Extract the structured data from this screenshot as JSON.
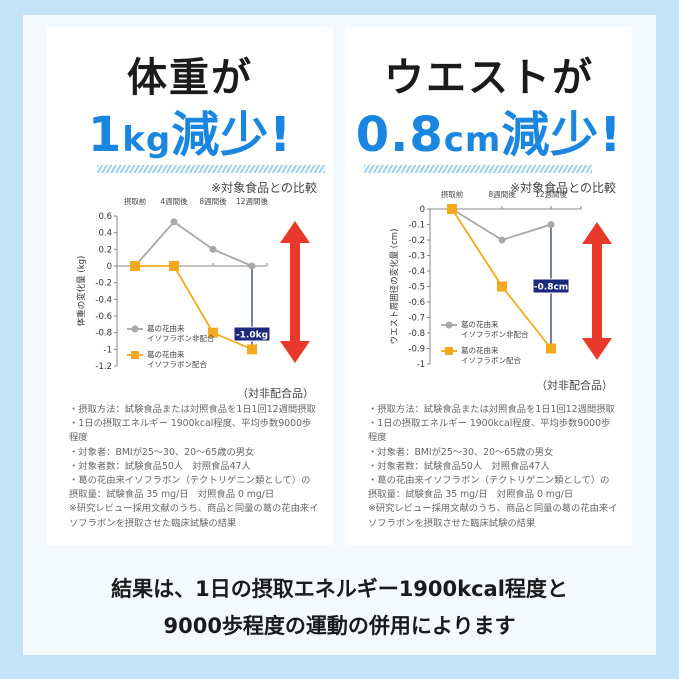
{
  "left_panel": {
    "title_line1": "体重が",
    "title_num": "1",
    "title_unit": "kg",
    "title_rest": "減少!",
    "comparison_note": "※対象食品との比較",
    "vs_label": "（対非配合品）",
    "description": "・摂取方法：試験食品または対照食品を1日1回12週間摂取\n・1日の摂取エネルギー 1900kcal程度、平均歩数9000歩程度\n・対象者：BMIが25～30、20～65歳の男女\n・対象者数：試験食品50人　対照食品47人\n・葛の花由来イソフラボン（テクトリゲニン類として）の摂取量：試験食品 35 mg/日　対照食品 0 mg/日\n※研究レビュー採用文献のうち、商品と同量の葛の花由来イソフラボンを摂取させた臨床試験の結果"
  },
  "right_panel": {
    "title_line1": "ウエストが",
    "title_num": "0.8",
    "title_unit": "cm",
    "title_rest": "減少!",
    "comparison_note": "※対象食品との比較",
    "vs_label": "（対非配合品）",
    "description": "・摂取方法：試験食品または対照食品を1日1回12週間摂取\n・1日の摂取エネルギー 1900kcal程度、平均歩数9000歩程度\n・対象者：BMIが25～30、20～65歳の男女\n・対象者数：試験食品50人　対照食品47人\n・葛の花由来イソフラボン（テクトリゲニン類として）の摂取量：試験食品 35 mg/日　対照食品 0 mg/日\n※研究レビュー採用文献のうち、商品と同量の葛の花由来イソフラボンを摂取させた臨床試験の結果"
  },
  "bottom_text": {
    "line1": "結果は、1日の摂取エネルギー1900kcal程度と",
    "line2": "9000歩程度の運動の併用によります"
  },
  "colors": {
    "background": "#c2e2f6",
    "accent_blue": "#1a86e0",
    "control_series": "#a8a8a8",
    "test_series": "#f5a91c",
    "arrow_red": "#e8392a",
    "label_navy": "#1b2a7a"
  },
  "chart_data": [
    {
      "type": "line",
      "title": "体重の変化量",
      "ylabel": "体重の変化量 (kg)",
      "xlabel": "",
      "categories": [
        "摂取前",
        "4週間後",
        "8週間後",
        "12週間後"
      ],
      "ylim": [
        -1.2,
        0.6
      ],
      "yticks": [
        0.6,
        0.4,
        0.2,
        0,
        -0.2,
        -0.4,
        -0.6,
        -0.8,
        -1,
        -1.2
      ],
      "series": [
        {
          "name": "葛の花由来イソフラボン非配合",
          "marker": "circle",
          "values": [
            0,
            0.53,
            0.2,
            0
          ]
        },
        {
          "name": "葛の花由来イソフラボン配合",
          "marker": "square",
          "values": [
            0,
            0,
            -0.8,
            -1.0
          ]
        }
      ],
      "annotation": "-1.0kg",
      "legend_position": "lower-left"
    },
    {
      "type": "line",
      "title": "ウエスト周囲径の変化量",
      "ylabel": "ウエスト周囲径の変化量 (cm)",
      "xlabel": "",
      "categories": [
        "摂取前",
        "8週間後",
        "12週間後"
      ],
      "ylim": [
        -1,
        0
      ],
      "yticks": [
        0,
        -0.1,
        -0.2,
        -0.3,
        -0.4,
        -0.5,
        -0.6,
        -0.7,
        -0.8,
        -0.9,
        -1
      ],
      "series": [
        {
          "name": "葛の花由来イソフラボン非配合",
          "marker": "circle",
          "values": [
            0,
            -0.2,
            -0.1
          ]
        },
        {
          "name": "葛の花由来イソフラボン配合",
          "marker": "square",
          "values": [
            0,
            -0.5,
            -0.9
          ]
        }
      ],
      "annotation": "-0.8cm",
      "legend_position": "lower-left"
    }
  ]
}
